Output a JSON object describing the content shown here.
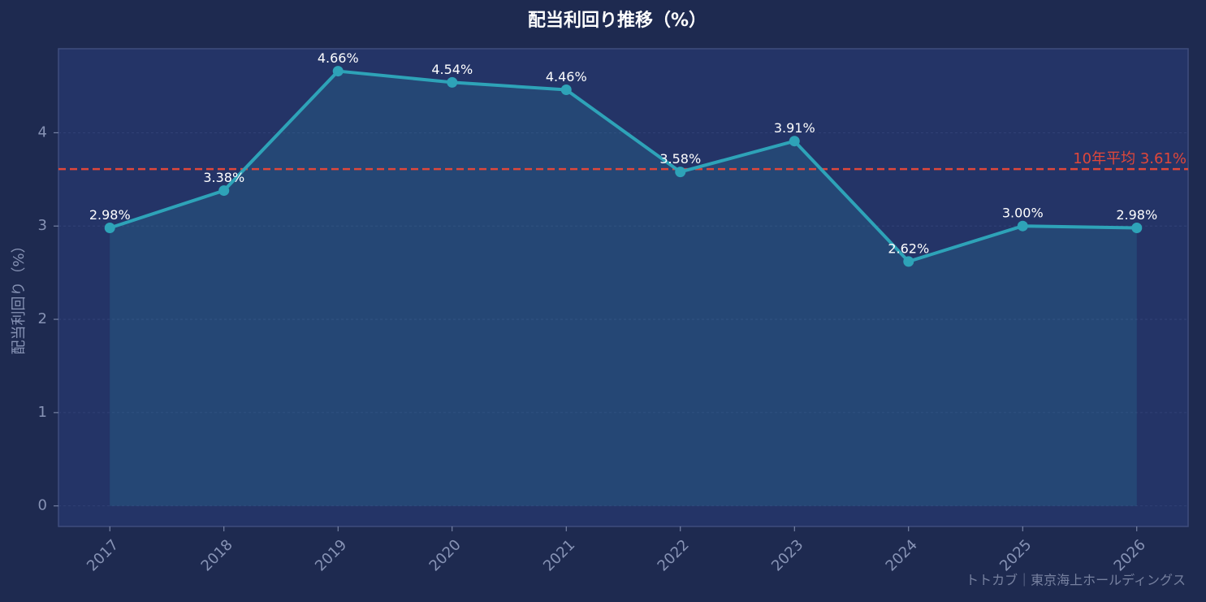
{
  "chart_data": {
    "type": "line",
    "title": "配当利回り推移（%）",
    "y_label": "配当利回り（%）",
    "categories": [
      "2017",
      "2018",
      "2019",
      "2020",
      "2021",
      "2022",
      "2023",
      "2024",
      "2025",
      "2026"
    ],
    "series": [
      {
        "color": "#2ea3b8",
        "values": [
          2.98,
          3.38,
          4.66,
          4.54,
          4.46,
          3.58,
          3.91,
          2.62,
          3.0,
          2.98
        ],
        "value_labels": [
          "2.98%",
          "3.38%",
          "4.66%",
          "4.54%",
          "4.46%",
          "3.58%",
          "3.91%",
          "2.62%",
          "3.00%",
          "2.98%"
        ]
      }
    ],
    "reference_line": {
      "value": 3.61,
      "label": "10年平均 3.61%",
      "color": "#e0473a"
    },
    "ylim": [
      -0.22,
      4.9
    ],
    "yticks": [
      0,
      1,
      2,
      3,
      4
    ],
    "grid": true,
    "area_fill": true,
    "watermark": "トトカブ｜東京海上ホールディングス"
  }
}
